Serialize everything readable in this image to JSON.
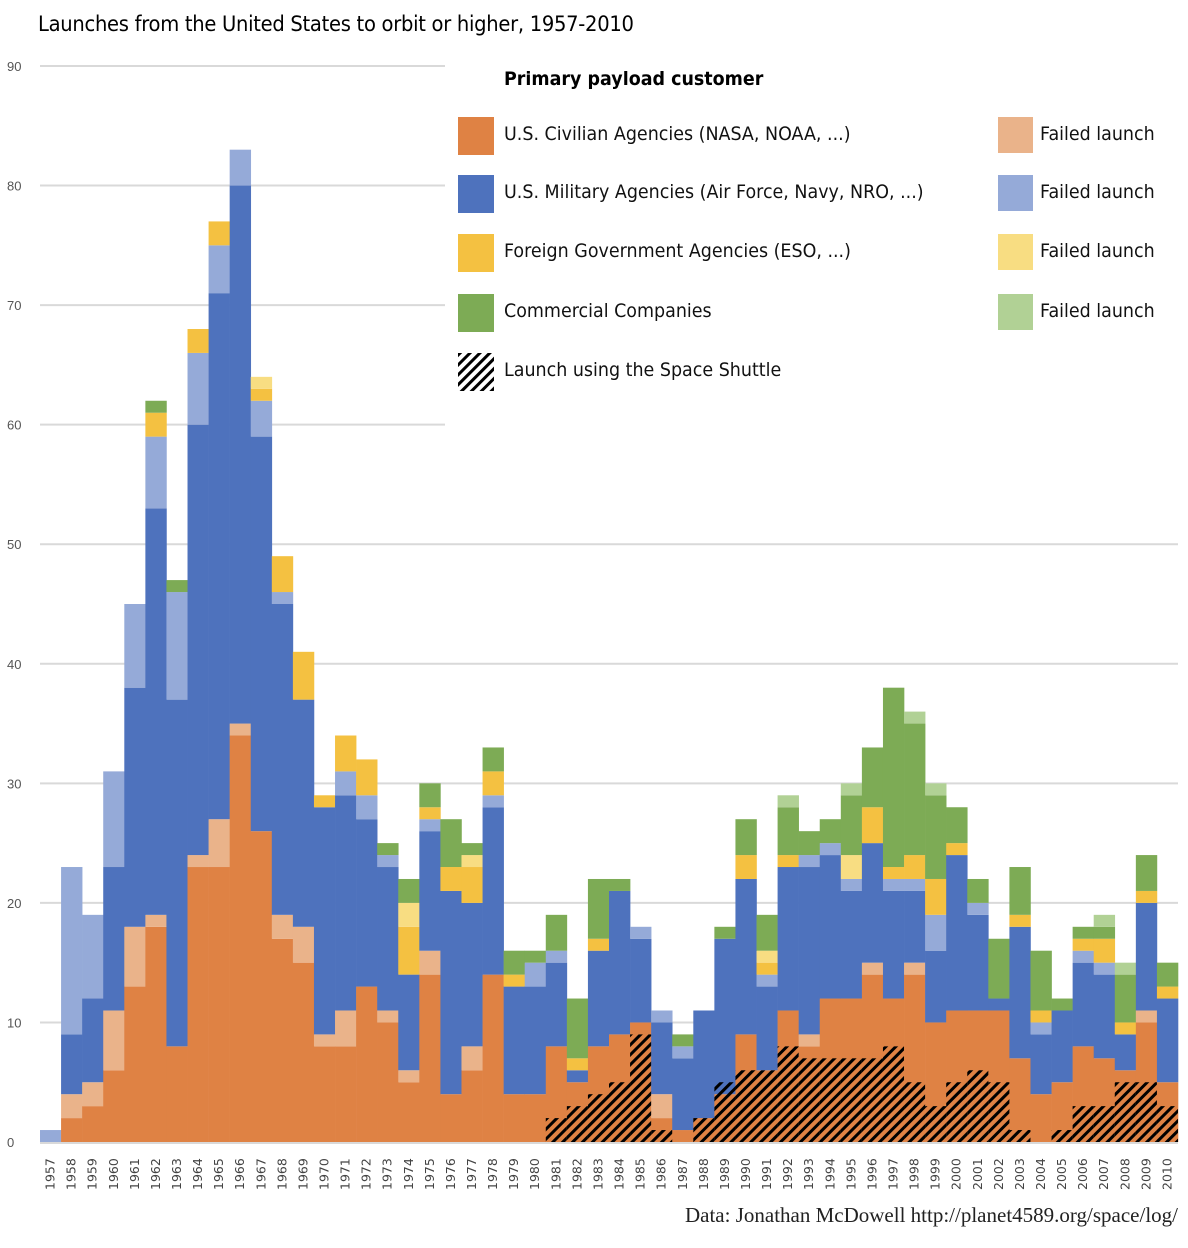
{
  "chart_data": {
    "type": "bar",
    "stacked": true,
    "title": "Launches from the United States to orbit or higher, 1957-2010",
    "xlabel": "",
    "ylabel": "",
    "ylim": [
      0,
      90
    ],
    "yticks": [
      0,
      10,
      20,
      30,
      40,
      50,
      60,
      70,
      80,
      90
    ],
    "grid": true,
    "legend_position": "top-right",
    "legend_title": "Primary payload customer",
    "source": "Data: Jonathan McDowell http://planet4589.org/space/log/",
    "categories": [
      "1957",
      "1958",
      "1959",
      "1960",
      "1961",
      "1962",
      "1963",
      "1964",
      "1965",
      "1966",
      "1967",
      "1968",
      "1969",
      "1970",
      "1971",
      "1972",
      "1973",
      "1974",
      "1975",
      "1976",
      "1977",
      "1978",
      "1979",
      "1980",
      "1981",
      "1982",
      "1983",
      "1984",
      "1985",
      "1986",
      "1987",
      "1988",
      "1989",
      "1990",
      "1991",
      "1992",
      "1993",
      "1994",
      "1995",
      "1996",
      "1997",
      "1998",
      "1999",
      "2000",
      "2001",
      "2002",
      "2003",
      "2004",
      "2005",
      "2006",
      "2007",
      "2008",
      "2009",
      "2010"
    ],
    "series": [
      {
        "name": "U.S. Civilian Agencies (NASA, NOAA, ...)",
        "key": "civ",
        "color": "#DF8244",
        "values": [
          0,
          2,
          3,
          6,
          13,
          18,
          8,
          23,
          23,
          34,
          26,
          17,
          15,
          8,
          8,
          13,
          10,
          5,
          14,
          4,
          6,
          14,
          4,
          4,
          8,
          5,
          8,
          9,
          10,
          2,
          1,
          2,
          4,
          9,
          6,
          11,
          8,
          12,
          12,
          14,
          12,
          14,
          10,
          11,
          11,
          11,
          7,
          4,
          5,
          8,
          7,
          6,
          10,
          5
        ]
      },
      {
        "name": "Failed launch (Civilian)",
        "key": "civ_fail",
        "color": "#EAB38A",
        "values": [
          0,
          2,
          2,
          5,
          5,
          1,
          0,
          1,
          4,
          1,
          0,
          2,
          3,
          1,
          3,
          0,
          1,
          1,
          2,
          0,
          2,
          0,
          0,
          0,
          0,
          0,
          0,
          0,
          0,
          2,
          0,
          0,
          0,
          0,
          0,
          0,
          1,
          0,
          0,
          1,
          0,
          1,
          0,
          0,
          0,
          0,
          0,
          0,
          0,
          0,
          0,
          0,
          1,
          0
        ]
      },
      {
        "name": "U.S. Military Agencies (Air Force, Navy, NRO, ...)",
        "key": "mil",
        "color": "#4E72BD",
        "values": [
          0,
          5,
          7,
          12,
          20,
          34,
          29,
          36,
          44,
          45,
          33,
          26,
          19,
          19,
          18,
          14,
          12,
          8,
          10,
          17,
          12,
          14,
          9,
          9,
          7,
          1,
          8,
          12,
          7,
          6,
          6,
          9,
          13,
          13,
          7,
          12,
          14,
          12,
          9,
          10,
          9,
          6,
          6,
          13,
          8,
          1,
          11,
          5,
          6,
          7,
          7,
          3,
          9,
          7
        ]
      },
      {
        "name": "Failed launch (Military)",
        "key": "mil_fail",
        "color": "#95AAD8",
        "values": [
          1,
          14,
          7,
          8,
          7,
          6,
          9,
          6,
          4,
          3,
          3,
          1,
          0,
          0,
          2,
          2,
          1,
          0,
          1,
          0,
          0,
          1,
          0,
          2,
          1,
          0,
          0,
          0,
          1,
          1,
          1,
          0,
          0,
          0,
          1,
          0,
          1,
          1,
          1,
          0,
          1,
          1,
          3,
          0,
          1,
          0,
          0,
          1,
          0,
          1,
          1,
          0,
          0,
          0
        ]
      },
      {
        "name": "Foreign Government Agencies (ESO, ...)",
        "key": "for",
        "color": "#F4C141",
        "values": [
          0,
          0,
          0,
          0,
          0,
          2,
          0,
          2,
          2,
          0,
          1,
          3,
          4,
          1,
          3,
          3,
          0,
          4,
          1,
          2,
          3,
          2,
          1,
          0,
          0,
          1,
          1,
          0,
          0,
          0,
          0,
          0,
          0,
          2,
          1,
          1,
          0,
          0,
          0,
          3,
          1,
          2,
          3,
          1,
          0,
          0,
          1,
          1,
          0,
          1,
          2,
          1,
          1,
          1
        ]
      },
      {
        "name": "Failed launch (Foreign)",
        "key": "for_fail",
        "color": "#F8DD82",
        "values": [
          0,
          0,
          0,
          0,
          0,
          0,
          0,
          0,
          0,
          0,
          1,
          0,
          0,
          0,
          0,
          0,
          0,
          2,
          0,
          0,
          1,
          0,
          0,
          0,
          0,
          0,
          0,
          0,
          0,
          0,
          0,
          0,
          0,
          0,
          1,
          0,
          0,
          0,
          2,
          0,
          0,
          0,
          0,
          0,
          0,
          0,
          0,
          0,
          0,
          0,
          0,
          0,
          0,
          0
        ]
      },
      {
        "name": "Commercial Companies",
        "key": "com",
        "color": "#7DAB55",
        "values": [
          0,
          0,
          0,
          0,
          0,
          1,
          1,
          0,
          0,
          0,
          0,
          0,
          0,
          0,
          0,
          0,
          1,
          2,
          2,
          4,
          1,
          2,
          2,
          1,
          3,
          5,
          5,
          1,
          0,
          0,
          1,
          0,
          1,
          3,
          3,
          4,
          2,
          2,
          5,
          5,
          15,
          11,
          7,
          3,
          2,
          5,
          4,
          5,
          1,
          1,
          1,
          4,
          3,
          2
        ]
      },
      {
        "name": "Failed launch (Commercial)",
        "key": "com_fail",
        "color": "#B1D195",
        "values": [
          0,
          0,
          0,
          0,
          0,
          0,
          0,
          0,
          0,
          0,
          0,
          0,
          0,
          0,
          0,
          0,
          0,
          0,
          0,
          0,
          0,
          0,
          0,
          0,
          0,
          0,
          0,
          0,
          0,
          0,
          0,
          0,
          0,
          0,
          0,
          1,
          0,
          0,
          1,
          0,
          0,
          1,
          1,
          0,
          0,
          0,
          0,
          0,
          0,
          0,
          1,
          1,
          0,
          0
        ]
      }
    ],
    "shuttle_launches": {
      "name": "Launch using the Space Shuttle",
      "pattern": "diagonal-hatch",
      "values": [
        0,
        0,
        0,
        0,
        0,
        0,
        0,
        0,
        0,
        0,
        0,
        0,
        0,
        0,
        0,
        0,
        0,
        0,
        0,
        0,
        0,
        0,
        0,
        0,
        2,
        3,
        4,
        5,
        9,
        1,
        0,
        2,
        5,
        6,
        6,
        8,
        7,
        7,
        7,
        7,
        8,
        5,
        3,
        5,
        6,
        5,
        1,
        0,
        1,
        3,
        3,
        5,
        5,
        3
      ]
    },
    "legend": {
      "entries": [
        {
          "label": "U.S. Civilian Agencies (NASA, NOAA, ...)",
          "color": "#DF8244",
          "fail_label": "Failed launch",
          "fail_color": "#EAB38A"
        },
        {
          "label": "U.S. Military Agencies (Air Force, Navy, NRO, ...)",
          "color": "#4E72BD",
          "fail_label": "Failed launch",
          "fail_color": "#95AAD8"
        },
        {
          "label": "Foreign Government Agencies (ESO, ...)",
          "color": "#F4C141",
          "fail_label": "Failed launch",
          "fail_color": "#F8DD82"
        },
        {
          "label": "Commercial Companies",
          "color": "#7DAB55",
          "fail_label": "Failed launch",
          "fail_color": "#B1D195"
        }
      ],
      "shuttle_label": "Launch using the Space Shuttle"
    }
  }
}
